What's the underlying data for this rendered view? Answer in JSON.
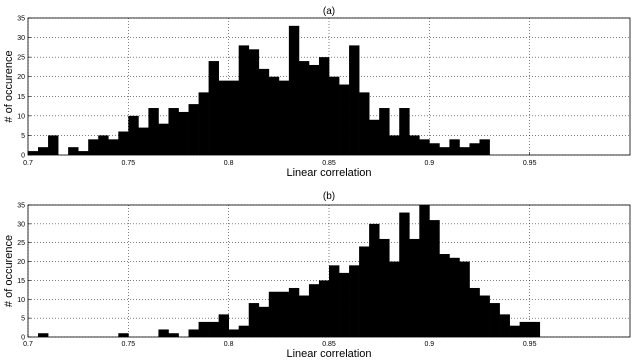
{
  "chart_data": [
    {
      "type": "bar",
      "title": "(a)",
      "xlabel": "Linear correlation",
      "ylabel": "# of occurence",
      "xlim": [
        0.7,
        1.0
      ],
      "ylim": [
        0,
        35
      ],
      "xticks": [
        "0.7",
        "0.75",
        "0.8",
        "0.85",
        "0.9",
        "0.95"
      ],
      "yticks": [
        "0",
        "5",
        "10",
        "15",
        "20",
        "25",
        "30",
        "35"
      ],
      "grid": true,
      "bin_width": 0.005,
      "bin_start": 0.7,
      "values": [
        1,
        2,
        5,
        0,
        2,
        1,
        4,
        5,
        4,
        6,
        10,
        7,
        12,
        8,
        12,
        11,
        13,
        16,
        24,
        19,
        19,
        28,
        27,
        22,
        20,
        19,
        33,
        24,
        23,
        25,
        20,
        18,
        28,
        16,
        9,
        12,
        5,
        12,
        5,
        4,
        3,
        2,
        4,
        2,
        3,
        4,
        0,
        0,
        0,
        0,
        0,
        0,
        0,
        0,
        0,
        0,
        0,
        0,
        0,
        0
      ]
    },
    {
      "type": "bar",
      "title": "(b)",
      "xlabel": "Linear correlation",
      "ylabel": "# of occurence",
      "xlim": [
        0.7,
        1.0
      ],
      "ylim": [
        0,
        35
      ],
      "xticks": [
        "0.7",
        "0.75",
        "0.8",
        "0.85",
        "0.9",
        "0.95"
      ],
      "yticks": [
        "0",
        "5",
        "10",
        "15",
        "20",
        "25",
        "30",
        "35"
      ],
      "grid": true,
      "bin_width": 0.005,
      "bin_start": 0.7,
      "values": [
        0,
        1,
        0,
        0,
        0,
        0,
        0,
        0,
        0,
        1,
        0,
        0,
        0,
        2,
        1,
        0,
        2,
        4,
        4,
        6,
        2,
        3,
        9,
        8,
        12,
        12,
        13,
        11,
        14,
        15,
        19,
        17,
        19,
        24,
        30,
        26,
        20,
        33,
        26,
        35,
        31,
        22,
        21,
        20,
        13,
        11,
        9,
        6,
        3,
        4,
        4,
        0,
        0,
        0,
        0,
        0,
        0,
        0,
        0,
        0
      ]
    }
  ]
}
